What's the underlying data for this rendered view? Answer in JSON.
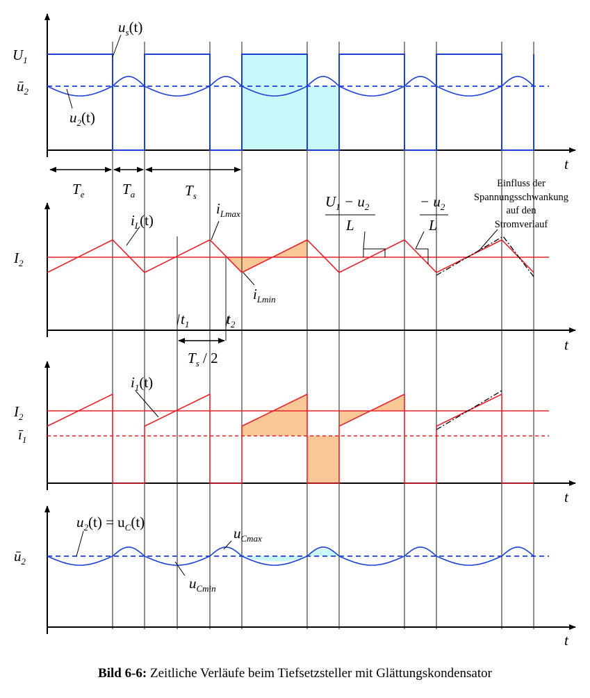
{
  "axis_label": "t",
  "panel1": {
    "label_U1": "U",
    "label_U1_sub": "1",
    "label_u2bar": "ū",
    "label_u2bar_sub": "2",
    "label_us": "u",
    "label_us_sub": "s",
    "label_us_arg": "(t)",
    "label_u2": "u",
    "label_u2_sub": "2",
    "label_u2_arg": "(t)",
    "Te": "T",
    "Te_sub": "e",
    "Ta": "T",
    "Ta_sub": "a",
    "Ts": "T",
    "Ts_sub": "s"
  },
  "panel2": {
    "label_I2": "I",
    "label_I2_sub": "2",
    "label_iL": "i",
    "label_iL_sub": "L",
    "label_iL_arg": "(t)",
    "label_iLmax": "i",
    "label_iLmax_sub": "L",
    "label_iLmax_sub2": "max",
    "label_iLmin": "i",
    "label_iLmin_sub": "L",
    "label_iLmin_sub2": "min",
    "t1": "t",
    "t1_sub": "1",
    "t2": "t",
    "t2_sub": "2",
    "Ts2": "T",
    "Ts2_sub": "s",
    "Ts2_rest": " / 2",
    "slope_up_num": "U",
    "slope_up_num_sub1": "1",
    "slope_up_num_mid": " − u",
    "slope_up_num_sub2": "2",
    "slope_up_den": "L",
    "slope_down_num": "− u",
    "slope_down_num_sub": "2",
    "slope_down_den": "L",
    "note_line1": "Einfluss der",
    "note_line2": "Spannungsschwankung",
    "note_line3": "auf den",
    "note_line4": "Stromverlauf"
  },
  "panel3": {
    "label_I2": "I",
    "label_I2_sub": "2",
    "label_i1bar": "ī",
    "label_i1bar_sub": "1",
    "label_i1": "i",
    "label_i1_sub": "1",
    "label_i1_arg": "(t)"
  },
  "panel4": {
    "label_u2bar": "ū",
    "label_u2bar_sub": "2",
    "label_eq": "u",
    "label_eq_sub1": "2",
    "label_eq_mid": "(t) = u",
    "label_eq_sub2": "C",
    "label_eq_end": "(t)",
    "label_ucmax": "u",
    "label_ucmax_sub": "C",
    "label_ucmax_sub2": "max",
    "label_ucmin": "u",
    "label_ucmin_sub": "C",
    "label_ucmin_sub2": "min"
  },
  "caption": {
    "bold": "Bild 6-6:",
    "text": " Zeitliche Verläufe beim Tiefsetzsteller mit Glättungskondensator"
  },
  "colors": {
    "blue": "#1a3fd6",
    "red": "#e8202a",
    "cyan": "#c8f8fc",
    "orange": "#f9c896",
    "black": "#000000"
  }
}
